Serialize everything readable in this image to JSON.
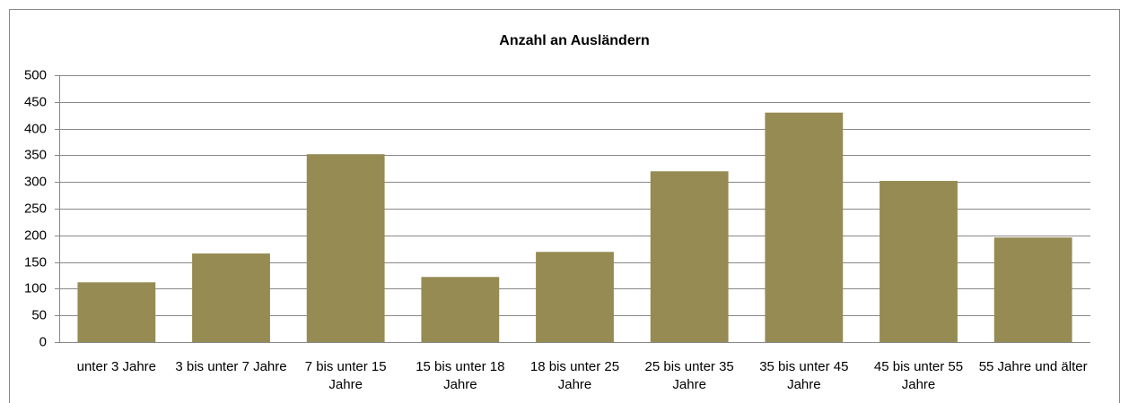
{
  "chart_data": {
    "type": "bar",
    "title": "Anzahl an Ausländern",
    "categories": [
      "unter 3 Jahre",
      "3 bis unter 7 Jahre",
      "7 bis unter 15 Jahre",
      "15 bis unter 18 Jahre",
      "18 bis unter 25 Jahre",
      "25 bis unter 35 Jahre",
      "35 bis unter 45 Jahre",
      "45 bis unter 55 Jahre",
      "55 Jahre und älter"
    ],
    "values": [
      112,
      166,
      352,
      122,
      169,
      320,
      430,
      302,
      196
    ],
    "color": "#958b53",
    "ylim": [
      0,
      500
    ],
    "yticks": [
      0,
      50,
      100,
      150,
      200,
      250,
      300,
      350,
      400,
      450,
      500
    ],
    "grid": true
  }
}
